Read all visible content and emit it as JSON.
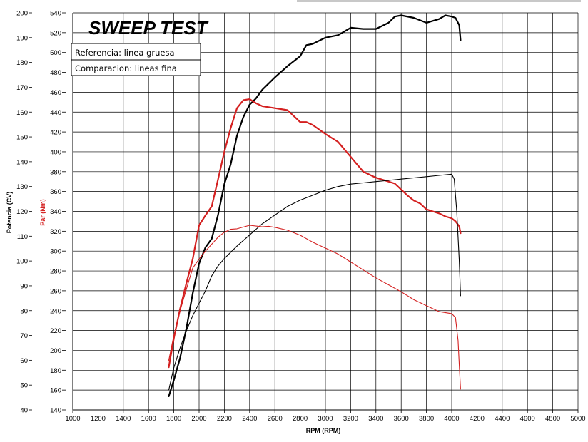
{
  "chart_data": {
    "type": "line",
    "title": "SWEEP TEST",
    "legend": [
      "Referencia: linea gruesa",
      "Comparacion: lineas fina"
    ],
    "xlabel": "RPM (RPM)",
    "ylabel_left": "Potencia (CV)",
    "ylabel_right": "Par (Nm)",
    "xlim": [
      1000,
      5000
    ],
    "xticks": [
      1000,
      1200,
      1400,
      1600,
      1800,
      2000,
      2200,
      2400,
      2600,
      2800,
      3000,
      3200,
      3400,
      3600,
      3800,
      4000,
      4200,
      4400,
      4600,
      4800,
      5000
    ],
    "y_power_lim": [
      40,
      200
    ],
    "y_power_ticks": [
      40,
      50,
      60,
      70,
      80,
      90,
      100,
      110,
      120,
      130,
      140,
      150,
      160,
      170,
      180,
      190,
      200
    ],
    "y_torque_lim": [
      140,
      540
    ],
    "y_torque_ticks": [
      140,
      160,
      180,
      200,
      220,
      240,
      260,
      280,
      300,
      320,
      340,
      360,
      380,
      400,
      420,
      440,
      460,
      480,
      500,
      520,
      540
    ],
    "series": [
      {
        "name": "Potencia referencia",
        "axis": "power",
        "color": "#000000",
        "weight": "thick",
        "x": [
          1760,
          1800,
          1850,
          1900,
          1950,
          2000,
          2050,
          2100,
          2150,
          2200,
          2250,
          2300,
          2350,
          2400,
          2450,
          2500,
          2600,
          2700,
          2800,
          2850,
          2900,
          3000,
          3100,
          3200,
          3300,
          3400,
          3500,
          3550,
          3600,
          3700,
          3800,
          3900,
          3950,
          4000,
          4030,
          4060,
          4070
        ],
        "y": [
          45.5,
          52,
          61,
          73,
          87,
          99,
          105.5,
          109,
          118.5,
          131,
          139,
          150.5,
          158,
          163,
          165.5,
          169,
          174,
          178.5,
          182.5,
          187,
          187.5,
          190,
          191,
          194,
          193.5,
          193.5,
          196,
          198.5,
          199,
          198,
          196,
          197.5,
          199,
          198.5,
          198,
          195,
          189
        ]
      },
      {
        "name": "Par referencia",
        "axis": "torque",
        "color": "#d42020",
        "weight": "thick",
        "x": [
          1760,
          1800,
          1850,
          1900,
          1950,
          2000,
          2050,
          2100,
          2150,
          2200,
          2250,
          2300,
          2350,
          2400,
          2450,
          2500,
          2600,
          2700,
          2800,
          2850,
          2900,
          3000,
          3100,
          3200,
          3300,
          3400,
          3500,
          3550,
          3600,
          3650,
          3700,
          3750,
          3800,
          3850,
          3900,
          3950,
          4000,
          4030,
          4060,
          4070
        ],
        "y": [
          183,
          212,
          242,
          268,
          292,
          326,
          336,
          345,
          372,
          400,
          424,
          444,
          452,
          453,
          449,
          446,
          444,
          442,
          430,
          430,
          427,
          418,
          410,
          395,
          380,
          374,
          370,
          368,
          362,
          356,
          351,
          348,
          342,
          340,
          338,
          335,
          333,
          330,
          325,
          318
        ]
      },
      {
        "name": "Potencia comparacion",
        "axis": "power",
        "color": "#000000",
        "weight": "thin",
        "x": [
          1760,
          1800,
          1850,
          1900,
          1950,
          2000,
          2050,
          2100,
          2150,
          2200,
          2300,
          2400,
          2500,
          2600,
          2700,
          2800,
          2900,
          3000,
          3100,
          3200,
          3300,
          3400,
          3500,
          3600,
          3700,
          3800,
          3900,
          4000,
          4020,
          4040,
          4060,
          4070
        ],
        "y": [
          48,
          57,
          65,
          72,
          78,
          83,
          88,
          94,
          98,
          101,
          106,
          110.5,
          115,
          118.5,
          122,
          124.5,
          126.5,
          128.5,
          130,
          131,
          131.5,
          132,
          132.5,
          133,
          133.5,
          134,
          134.5,
          135,
          133,
          120,
          100,
          86
        ]
      },
      {
        "name": "Par comparacion",
        "axis": "torque",
        "color": "#d42020",
        "weight": "thin",
        "x": [
          1760,
          1800,
          1850,
          1900,
          1950,
          2000,
          2050,
          2100,
          2150,
          2200,
          2250,
          2300,
          2400,
          2500,
          2550,
          2600,
          2700,
          2800,
          2900,
          3000,
          3100,
          3200,
          3300,
          3400,
          3500,
          3600,
          3700,
          3800,
          3900,
          4000,
          4030,
          4050,
          4060,
          4070
        ],
        "y": [
          190,
          215,
          240,
          262,
          283,
          292,
          300,
          307,
          314,
          319,
          322,
          322.5,
          326,
          324.5,
          325,
          324,
          321,
          316,
          309,
          303,
          297,
          289,
          281,
          273,
          266,
          259,
          251,
          245,
          239,
          237,
          233,
          210,
          185,
          161
        ]
      }
    ]
  }
}
